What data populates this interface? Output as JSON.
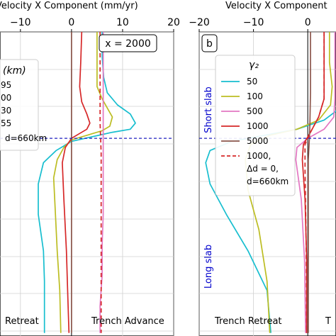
{
  "chart_data": [
    {
      "type": "line",
      "xlabel": "Velocity X Component (mm/yr)",
      "xlim": [
        -14,
        20
      ],
      "xticks": [
        -10,
        0,
        10,
        20
      ],
      "xtick_labels": [
        "−10",
        "0",
        "10",
        "20"
      ],
      "ylim": [
        0,
        1
      ],
      "y_increasing": "down",
      "reference_line_y": 0.35,
      "annotation": "x = 2000",
      "bottom_left_text": "Retreat",
      "bottom_right_text": "Trench Advance",
      "legend_title": "(km)",
      "legend_entries": [
        "95",
        "00",
        "30",
        "55",
        "d=660km"
      ],
      "series": [
        {
          "color": "#17becf",
          "style": "solid",
          "x": [
            6,
            6,
            6.3,
            7,
            9,
            11.5,
            12.5,
            11.5,
            8,
            4,
            0,
            -3,
            -5.5,
            -6.5,
            -6.5,
            -5.5,
            -5.3,
            -5.3
          ],
          "y": [
            0.0,
            0.08,
            0.15,
            0.2,
            0.24,
            0.27,
            0.3,
            0.32,
            0.33,
            0.345,
            0.36,
            0.39,
            0.43,
            0.5,
            0.6,
            0.72,
            0.82,
            0.99
          ]
        },
        {
          "color": "#bcbd22",
          "style": "solid",
          "x": [
            5,
            5,
            5,
            6,
            7,
            8,
            7.5,
            6,
            3,
            0,
            -1.5,
            -2.8,
            -3.5,
            -3.2,
            -2.8,
            -2.3,
            -2.1
          ],
          "y": [
            0.0,
            0.1,
            0.18,
            0.22,
            0.25,
            0.28,
            0.31,
            0.325,
            0.34,
            0.355,
            0.38,
            0.42,
            0.48,
            0.58,
            0.72,
            0.85,
            0.99
          ]
        },
        {
          "color": "#d62728",
          "style": "solid",
          "x": [
            2,
            1.8,
            1.6,
            2,
            3,
            3.6,
            3,
            1.5,
            0,
            -1.2,
            -1.8,
            -1.5,
            -1.0,
            -0.7,
            -0.5
          ],
          "y": [
            0.0,
            0.1,
            0.18,
            0.23,
            0.27,
            0.3,
            0.32,
            0.335,
            0.35,
            0.38,
            0.43,
            0.55,
            0.72,
            0.88,
            0.99
          ]
        },
        {
          "color": "#e377c2",
          "style": "solid",
          "x": [
            6.2,
            6.2,
            6.2,
            6.2,
            6.2,
            6.2,
            6.0,
            6.0,
            5.6,
            5.6
          ],
          "y": [
            0.0,
            0.2,
            0.3,
            0.4,
            0.5,
            0.6,
            0.7,
            0.8,
            0.9,
            0.99
          ]
        },
        {
          "color": "#8c564b",
          "style": "solid",
          "x": [
            0,
            0,
            0,
            0
          ],
          "y": [
            0.0,
            0.35,
            0.7,
            0.99
          ]
        },
        {
          "color": "#d62728",
          "style": "dashed",
          "x": [
            5.6,
            5.6,
            5.8,
            5.8,
            5.8,
            5.8
          ],
          "y": [
            0.0,
            0.3,
            0.4,
            0.6,
            0.8,
            0.99
          ]
        }
      ]
    },
    {
      "type": "line",
      "panel_label": "b",
      "xlabel": "Velocity X Component",
      "xlim": [
        -20,
        5.2
      ],
      "xticks": [
        -20,
        -10,
        0
      ],
      "xtick_labels": [
        "−20",
        "−10",
        "0"
      ],
      "ylim": [
        0,
        1
      ],
      "y_increasing": "down",
      "reference_line_y": 0.35,
      "side_label_top": "Short slab",
      "side_label_bottom": "Long slab",
      "bottom_left_text": "Trench Retreat",
      "bottom_right_text": "T",
      "legend_title": "γ₂",
      "legend_entries": [
        "50",
        "100",
        "500",
        "1000",
        "5000",
        "1000, Δd = 0, d=660km"
      ],
      "series": [
        {
          "color": "#17becf",
          "style": "solid",
          "x": [
            6,
            6,
            6.5,
            7,
            6,
            3,
            -2,
            -8,
            -14,
            -18,
            -18.8,
            -18,
            -15,
            -11,
            -7.5,
            -6.8
          ],
          "y": [
            0.0,
            0.08,
            0.14,
            0.2,
            0.25,
            0.29,
            0.32,
            0.34,
            0.36,
            0.39,
            0.43,
            0.5,
            0.6,
            0.72,
            0.85,
            0.99
          ]
        },
        {
          "color": "#bcbd22",
          "style": "solid",
          "x": [
            4,
            4,
            4.5,
            4.2,
            2,
            -2,
            -7,
            -10.5,
            -11.5,
            -11,
            -9,
            -7.5,
            -7
          ],
          "y": [
            0.0,
            0.1,
            0.18,
            0.24,
            0.29,
            0.32,
            0.34,
            0.37,
            0.42,
            0.52,
            0.65,
            0.82,
            0.99
          ]
        },
        {
          "color": "#e377c2",
          "style": "solid",
          "x": [
            5,
            5,
            5,
            4.8,
            3,
            0,
            -2,
            -2.2,
            -1.2,
            -0.6,
            -0.4
          ],
          "y": [
            0.0,
            0.12,
            0.22,
            0.28,
            0.32,
            0.35,
            0.38,
            0.42,
            0.55,
            0.75,
            0.99
          ]
        },
        {
          "color": "#d62728",
          "style": "solid",
          "x": [
            3,
            3,
            3,
            2,
            0.5,
            -0.8,
            -1.0,
            -0.5,
            -0.2,
            -0.2
          ],
          "y": [
            0.0,
            0.12,
            0.22,
            0.28,
            0.33,
            0.37,
            0.42,
            0.55,
            0.75,
            0.99
          ]
        },
        {
          "color": "#8c564b",
          "style": "solid",
          "x": [
            0.5,
            0.5,
            0.4,
            0.3,
            0.1,
            0.1,
            0.1
          ],
          "y": [
            0.0,
            0.2,
            0.3,
            0.35,
            0.42,
            0.7,
            0.99
          ]
        },
        {
          "color": "#d62728",
          "style": "dashed",
          "x": [
            3,
            3,
            3,
            2,
            0.5,
            -0.5,
            -0.5,
            -0.3,
            -0.2
          ],
          "y": [
            0.0,
            0.12,
            0.22,
            0.28,
            0.33,
            0.37,
            0.45,
            0.7,
            0.99
          ]
        }
      ]
    }
  ]
}
